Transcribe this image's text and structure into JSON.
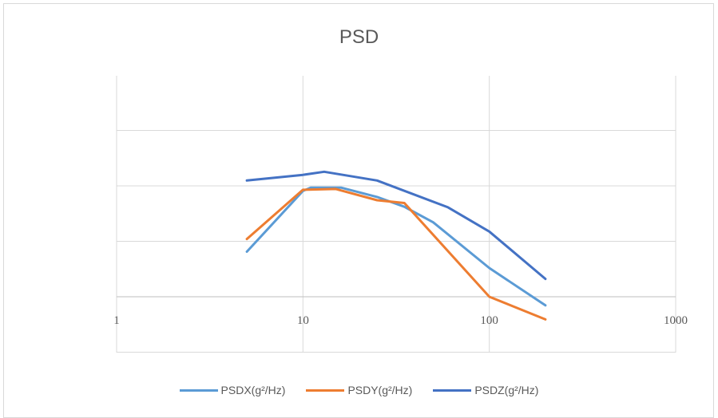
{
  "chart_data": {
    "type": "line",
    "title": "PSD",
    "xlabel": "",
    "ylabel": "",
    "x_scale": "log",
    "xlim": [
      1,
      1000
    ],
    "x_ticks": [
      "1",
      "10",
      "100",
      "1000"
    ],
    "y_scale": "log",
    "y_ticks_labeled": false,
    "grid": true,
    "legend_position": "bottom",
    "series": [
      {
        "name": "PSDX(g²/Hz)",
        "color": "#5b9bd5",
        "x": [
          5,
          10,
          11,
          16,
          25,
          35,
          50,
          100,
          200
        ],
        "y": [
          0.00065,
          0.0081,
          0.0093,
          0.0093,
          0.0063,
          0.0042,
          0.0022,
          0.00033,
          7e-05
        ]
      },
      {
        "name": "PSDY(g²/Hz)",
        "color": "#ed7d31",
        "x": [
          5,
          10,
          15,
          25,
          35,
          100,
          200
        ],
        "y": [
          0.0011,
          0.0085,
          0.0088,
          0.0055,
          0.0049,
          0.0001,
          3.9e-05
        ]
      },
      {
        "name": "PSDZ(g²/Hz)",
        "color": "#4472c4",
        "x": [
          5,
          10,
          13,
          25,
          60,
          100,
          200
        ],
        "y": [
          0.0125,
          0.0158,
          0.018,
          0.0125,
          0.0041,
          0.0015,
          0.00021
        ]
      }
    ]
  }
}
